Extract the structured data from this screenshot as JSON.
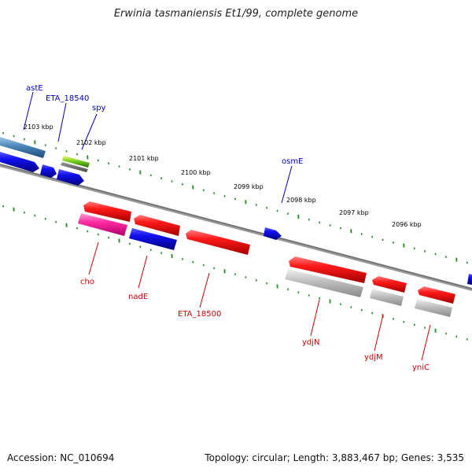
{
  "title": "Erwinia tasmaniensis Et1/99, complete genome",
  "footer": {
    "accession": "Accession: NC_010694",
    "summary": "Topology: circular; Length: 3,883,467 bp; Genes: 3,535"
  },
  "colors": {
    "forward_label": "#0000bb",
    "reverse_label": "#cc0000",
    "tick": "#228b22",
    "backbone": "#7a7a7a"
  },
  "kbp_labels": [
    "2103 kbp",
    "2102 kbp",
    "2101 kbp",
    "2100 kbp",
    "2099 kbp",
    "2098 kbp",
    "2097 kbp",
    "2096 kbp"
  ],
  "forward_genes": [
    "astE",
    "ETA_18540",
    "spy",
    "osmE"
  ],
  "reverse_genes": [
    "cho",
    "nadE",
    "ETA_18500",
    "ydjN",
    "ydjM",
    "yniC"
  ]
}
